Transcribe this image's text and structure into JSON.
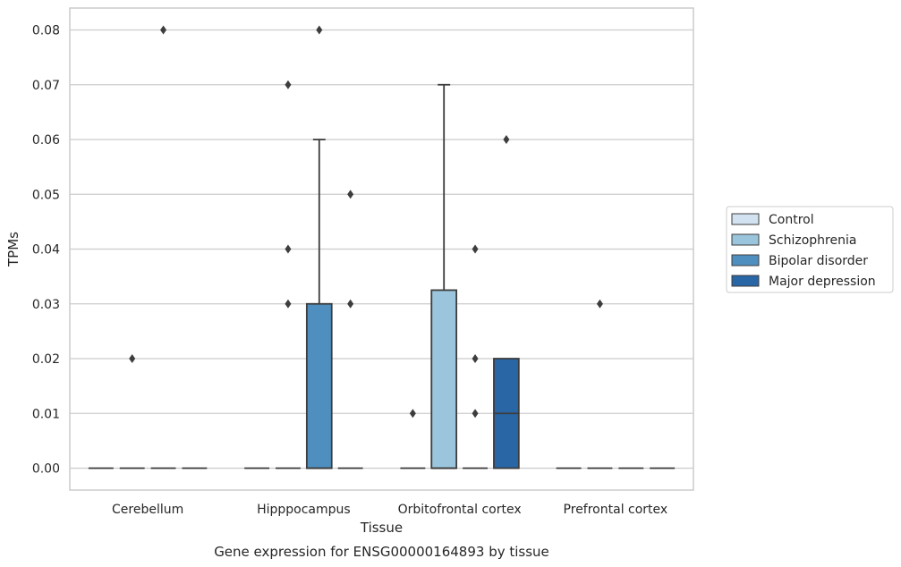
{
  "chart_data": {
    "type": "box",
    "caption": "Gene expression for ENSG00000164893 by tissue",
    "xlabel": "Tissue",
    "ylabel": "TPMs",
    "ylim": [
      -0.004,
      0.084
    ],
    "yticks": [
      0.0,
      0.01,
      0.02,
      0.03,
      0.04,
      0.05,
      0.06,
      0.07,
      0.08
    ],
    "ytick_labels": [
      "0.00",
      "0.01",
      "0.02",
      "0.03",
      "0.04",
      "0.05",
      "0.06",
      "0.07",
      "0.08"
    ],
    "grid": true,
    "legend_position": "right",
    "categories": [
      "Cerebellum",
      "Hipppocampus",
      "Orbitofrontal cortex",
      "Prefrontal cortex"
    ],
    "series": [
      {
        "name": "Control",
        "color": "#d3e2f0",
        "boxes": [
          {
            "q1": 0,
            "median": 0,
            "q3": 0,
            "whisker_low": 0,
            "whisker_high": 0,
            "outliers": []
          },
          {
            "q1": 0,
            "median": 0,
            "q3": 0,
            "whisker_low": 0,
            "whisker_high": 0,
            "outliers": []
          },
          {
            "q1": 0,
            "median": 0,
            "q3": 0,
            "whisker_low": 0,
            "whisker_high": 0,
            "outliers": [
              0.01
            ]
          },
          {
            "q1": 0,
            "median": 0,
            "q3": 0,
            "whisker_low": 0,
            "whisker_high": 0,
            "outliers": []
          }
        ]
      },
      {
        "name": "Schizophrenia",
        "color": "#9ac5dc",
        "boxes": [
          {
            "q1": 0,
            "median": 0,
            "q3": 0,
            "whisker_low": 0,
            "whisker_high": 0,
            "outliers": [
              0.02
            ]
          },
          {
            "q1": 0,
            "median": 0,
            "q3": 0,
            "whisker_low": 0,
            "whisker_high": 0,
            "outliers": [
              0.07,
              0.04,
              0.03
            ]
          },
          {
            "q1": 0,
            "median": 0,
            "q3": 0.0325,
            "whisker_low": 0,
            "whisker_high": 0.07,
            "outliers": []
          },
          {
            "q1": 0,
            "median": 0,
            "q3": 0,
            "whisker_low": 0,
            "whisker_high": 0,
            "outliers": [
              0.03
            ]
          }
        ]
      },
      {
        "name": "Bipolar disorder",
        "color": "#4e8fc0",
        "boxes": [
          {
            "q1": 0,
            "median": 0,
            "q3": 0,
            "whisker_low": 0,
            "whisker_high": 0,
            "outliers": [
              0.08
            ]
          },
          {
            "q1": 0,
            "median": 0,
            "q3": 0.03,
            "whisker_low": 0,
            "whisker_high": 0.06,
            "outliers": [
              0.08
            ]
          },
          {
            "q1": 0,
            "median": 0,
            "q3": 0,
            "whisker_low": 0,
            "whisker_high": 0,
            "outliers": [
              0.04,
              0.02,
              0.01
            ]
          },
          {
            "q1": 0,
            "median": 0,
            "q3": 0,
            "whisker_low": 0,
            "whisker_high": 0,
            "outliers": []
          }
        ]
      },
      {
        "name": "Major depression",
        "color": "#2866a5",
        "boxes": [
          {
            "q1": 0,
            "median": 0,
            "q3": 0,
            "whisker_low": 0,
            "whisker_high": 0,
            "outliers": []
          },
          {
            "q1": 0,
            "median": 0,
            "q3": 0,
            "whisker_low": 0,
            "whisker_high": 0,
            "outliers": [
              0.05,
              0.03
            ]
          },
          {
            "q1": 0,
            "median": 0.01,
            "q3": 0.02,
            "whisker_low": 0,
            "whisker_high": 0.02,
            "outliers": [
              0.06
            ]
          },
          {
            "q1": 0,
            "median": 0,
            "q3": 0,
            "whisker_low": 0,
            "whisker_high": 0,
            "outliers": []
          }
        ]
      }
    ]
  }
}
